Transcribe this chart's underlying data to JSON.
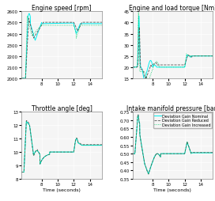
{
  "title_fontsize": 5.5,
  "label_fontsize": 4.5,
  "tick_fontsize": 4.0,
  "legend_fontsize": 3.5,
  "colors": {
    "nominal": "#00EEEE",
    "reduced": "#555555",
    "increased": "#00CC66"
  },
  "linestyles": {
    "nominal": "-",
    "reduced": "--",
    "increased": ":"
  },
  "linewidths": {
    "nominal": 0.7,
    "reduced": 0.6,
    "increased": 0.6
  },
  "subplot_titles": [
    "Engine speed [rpm]",
    "Engine and load torque [Nm]",
    "Throttle angle [deg]",
    "Intake manifold pressure [bar]"
  ],
  "xlabel": "Time (seconds)",
  "xlim": [
    5.5,
    15.5
  ],
  "xticks": [
    8,
    10,
    12,
    14
  ],
  "ylim_speed": [
    2000,
    2600
  ],
  "yticks_speed": [
    2000,
    2100,
    2200,
    2300,
    2400,
    2500,
    2600
  ],
  "ylim_torque": [
    15,
    45
  ],
  "yticks_torque": [
    15,
    20,
    25,
    30,
    35,
    40,
    45
  ],
  "ylim_throttle": [
    8,
    13
  ],
  "yticks_throttle": [
    8,
    9,
    10,
    11,
    12,
    13
  ],
  "ylim_intake": [
    0.35,
    0.75
  ],
  "yticks_intake": [
    0.35,
    0.4,
    0.45,
    0.5,
    0.55,
    0.6,
    0.65,
    0.7,
    0.75
  ],
  "legend_labels": [
    "Deviation Gain Nominal",
    "Deviation Gain Reduced",
    "Deviation Gain Increased"
  ],
  "bg_color": "#f0f0f0"
}
